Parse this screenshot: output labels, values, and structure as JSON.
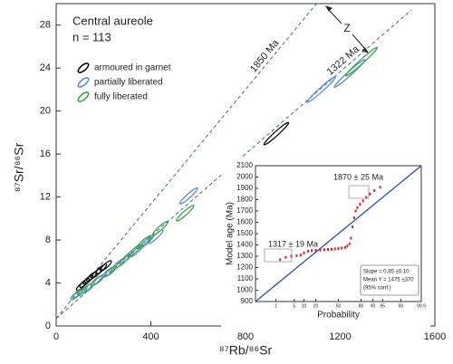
{
  "chart_data": [
    {
      "type": "ellipse-scatter",
      "title": "Central aureole",
      "subtitle": "n = 113",
      "x_label": "⁸⁷Rb/⁸⁶Sr",
      "y_label": "⁸⁷Sr/⁸⁶Sr",
      "xlim": [
        0,
        1600
      ],
      "xticks": [
        0,
        400,
        800,
        1200,
        1600
      ],
      "ylim": [
        0,
        30
      ],
      "yticks": [
        0,
        4,
        8,
        12,
        16,
        20,
        24,
        28
      ],
      "series": [
        {
          "name": "armoured in garnet",
          "color": "#111111",
          "x": [
            930,
            105,
            120,
            135,
            150,
            170,
            190,
            210
          ],
          "values": [
            17.9,
            3.7,
            4.0,
            4.3,
            4.6,
            4.9,
            5.3,
            5.6
          ]
        },
        {
          "name": "partially liberated",
          "color": "#5b8fc9",
          "x": [
            1120,
            1240,
            560,
            80,
            110,
            140,
            180,
            220,
            260,
            300,
            340,
            380,
            420
          ],
          "values": [
            22,
            23.5,
            12.1,
            2.8,
            3.2,
            3.6,
            4.3,
            5.0,
            5.7,
            6.4,
            7.0,
            7.8,
            8.3
          ]
        },
        {
          "name": "fully liberated",
          "color": "#3aa84a",
          "x": [
            1290,
            440,
            545,
            90,
            130,
            170,
            230,
            280,
            330,
            370
          ],
          "values": [
            24.6,
            9.1,
            10.5,
            3.0,
            3.5,
            4.2,
            5.1,
            6.0,
            7.0,
            7.8
          ]
        }
      ],
      "reference_lines": [
        {
          "name": "1850 Ma",
          "x": [
            0,
            1100
          ],
          "values": [
            0.7,
            30
          ]
        },
        {
          "name": "1322 Ma",
          "x": [
            0,
            1500
          ],
          "values": [
            0.7,
            29.4
          ]
        }
      ],
      "annotation": "Z"
    },
    {
      "type": "probability",
      "x_label": "Probability",
      "y_label": "Model age (Ma)",
      "xlim": [
        0.1,
        99.9
      ],
      "xticks": [
        1,
        5,
        10,
        20,
        50,
        80,
        90,
        95,
        99,
        99.9
      ],
      "ylim": [
        900,
        2100
      ],
      "yticks": [
        900,
        1000,
        1100,
        1200,
        1300,
        1400,
        1500,
        1600,
        1700,
        1800,
        1900,
        2000,
        2100
      ],
      "series": [
        {
          "name": "Model age",
          "color": "#e02020",
          "x": [
            1.5,
            2.5,
            4,
            6,
            8,
            10,
            13,
            16,
            20,
            25,
            30,
            35,
            40,
            45,
            50,
            55,
            60,
            63,
            66,
            68,
            70,
            72,
            74,
            76,
            79,
            82,
            85,
            88,
            91,
            94
          ],
          "values": [
            1270,
            1290,
            1300,
            1305,
            1310,
            1330,
            1345,
            1350,
            1352,
            1355,
            1358,
            1360,
            1362,
            1365,
            1368,
            1372,
            1378,
            1390,
            1410,
            1460,
            1560,
            1640,
            1700,
            1730,
            1760,
            1790,
            1820,
            1850,
            1880,
            1910
          ]
        }
      ],
      "reference_lines": [
        {
          "name": "Slope",
          "x": [
            0.1,
            99.9
          ],
          "values": [
            900,
            2100
          ]
        }
      ],
      "annotations": [
        "1870 ± 25 Ma",
        "1317 ± 19 Ma"
      ],
      "stats": [
        "Slope = 0.85 ±0.10",
        "Mean Y = 1475 ±370",
        "(95% conf.)"
      ]
    }
  ]
}
